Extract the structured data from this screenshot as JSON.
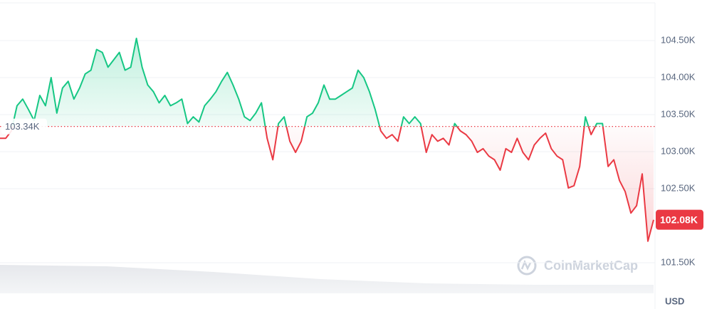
{
  "chart_data": {
    "type": "line",
    "values": [
      103180,
      103180,
      103280,
      103620,
      103710,
      103570,
      103420,
      103760,
      103620,
      104000,
      103520,
      103860,
      103950,
      103710,
      103860,
      104050,
      104100,
      104380,
      104340,
      104140,
      104240,
      104340,
      104100,
      104140,
      104530,
      104140,
      103900,
      103810,
      103660,
      103760,
      103620,
      103660,
      103710,
      103380,
      103470,
      103400,
      103620,
      103710,
      103810,
      103950,
      104070,
      103900,
      103710,
      103470,
      103420,
      103520,
      103660,
      103180,
      102890,
      103380,
      103470,
      103140,
      102990,
      103140,
      103470,
      103520,
      103660,
      103900,
      103710,
      103710,
      103760,
      103810,
      103860,
      104100,
      104000,
      103810,
      103570,
      103280,
      103180,
      103230,
      103140,
      103470,
      103380,
      103470,
      103380,
      102990,
      103230,
      103140,
      103180,
      103090,
      103380,
      103280,
      103230,
      103140,
      102990,
      103040,
      102940,
      102890,
      102750,
      103040,
      102990,
      103180,
      102990,
      102890,
      103090,
      103180,
      103250,
      103040,
      102940,
      102890,
      102510,
      102540,
      102800,
      103470,
      103230,
      103380,
      103380,
      102800,
      102890,
      102610,
      102460,
      102170,
      102270,
      102700,
      101790,
      102080
    ],
    "up_color": "#16c784",
    "down_color": "#ea3943",
    "baseline": {
      "value": 103340,
      "label": "103.34K"
    },
    "last": {
      "value": 102080,
      "label": "102.08K"
    },
    "ylim": [
      101000,
      105000
    ],
    "yticks": [
      {
        "value": 101500,
        "label": "101.50K"
      },
      {
        "value": 102500,
        "label": "102.50K"
      },
      {
        "value": 103000,
        "label": "103.00K"
      },
      {
        "value": 103500,
        "label": "103.50K"
      },
      {
        "value": 104000,
        "label": "104.00K"
      },
      {
        "value": 104500,
        "label": "104.50K"
      }
    ],
    "grid": true,
    "watermark": "CoinMarketCap",
    "currency": "USD"
  }
}
